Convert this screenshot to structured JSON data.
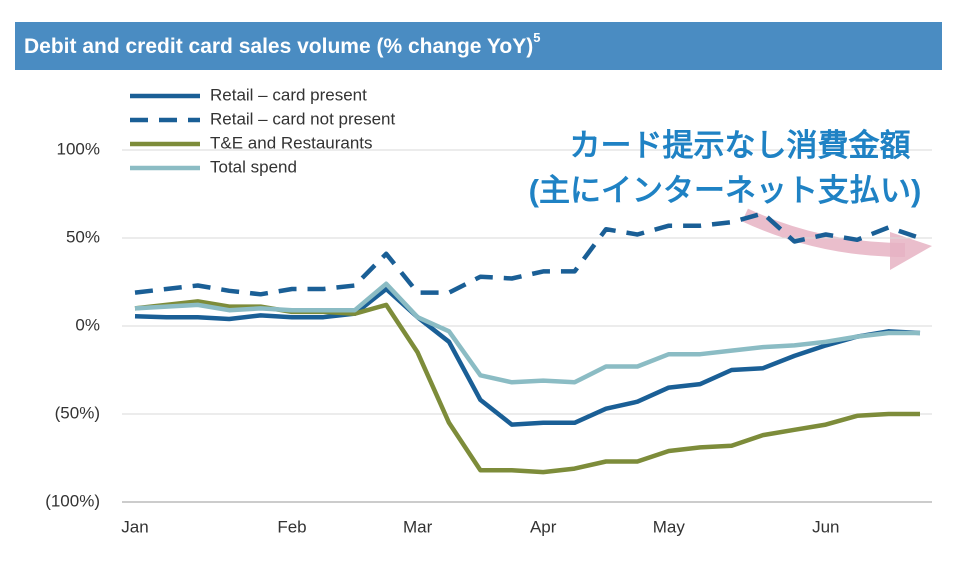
{
  "chart_data": {
    "type": "line",
    "title": "Debit and credit card sales volume (% change YoY)",
    "title_footnote": "5",
    "annotation": [
      "カード提示なし消費金額",
      "(主にインターネット支払い)"
    ],
    "categories": [
      "Jan",
      null,
      null,
      null,
      null,
      "Feb",
      null,
      null,
      null,
      "Mar",
      null,
      null,
      null,
      "Apr",
      null,
      null,
      null,
      "May",
      null,
      null,
      null,
      null,
      "Jun",
      null,
      null,
      null
    ],
    "ylim": [
      -100,
      100
    ],
    "yticks": [
      {
        "value": 100,
        "label": "100%"
      },
      {
        "value": 50,
        "label": "50%"
      },
      {
        "value": 0,
        "label": "0%"
      },
      {
        "value": -50,
        "label": "(50%)"
      },
      {
        "value": -100,
        "label": "(100%)"
      }
    ],
    "grid": true,
    "legend": "top-left",
    "series": [
      {
        "name": "Retail – card present",
        "color": "#1a5f96",
        "style": "solid",
        "values": [
          5.5,
          5,
          5,
          4,
          6,
          5,
          5,
          7,
          21,
          5,
          -9,
          -42,
          -56,
          -55,
          -55,
          -47,
          -43,
          -35,
          -33,
          -25,
          -24,
          -17,
          -11,
          -6,
          -3,
          -4
        ]
      },
      {
        "name": "Retail – card not present",
        "color": "#1a5f96",
        "style": "dashed",
        "values": [
          19,
          21,
          23,
          20,
          18,
          21,
          21,
          23,
          41,
          19,
          19,
          28,
          27,
          31,
          31,
          55,
          52,
          57,
          57,
          59,
          64,
          48,
          52,
          49,
          56,
          50
        ]
      },
      {
        "name": "T&E and Restaurants",
        "color": "#7d8c3a",
        "style": "solid",
        "values": [
          10,
          12,
          14,
          11,
          11,
          8,
          8,
          7,
          12,
          -15,
          -55,
          -82,
          -82,
          -83,
          -81,
          -77,
          -77,
          -71,
          -69,
          -68,
          -62,
          -59,
          -56,
          -51,
          -50,
          -50
        ]
      },
      {
        "name": "Total spend",
        "color": "#8bbcc4",
        "style": "solid",
        "values": [
          10,
          11,
          12,
          9,
          10,
          9,
          9,
          9,
          24,
          5,
          -3,
          -28,
          -32,
          -31,
          -32,
          -23,
          -23,
          -16,
          -16,
          -14,
          -12,
          -11,
          -9,
          -6,
          -4,
          -4
        ]
      }
    ]
  }
}
